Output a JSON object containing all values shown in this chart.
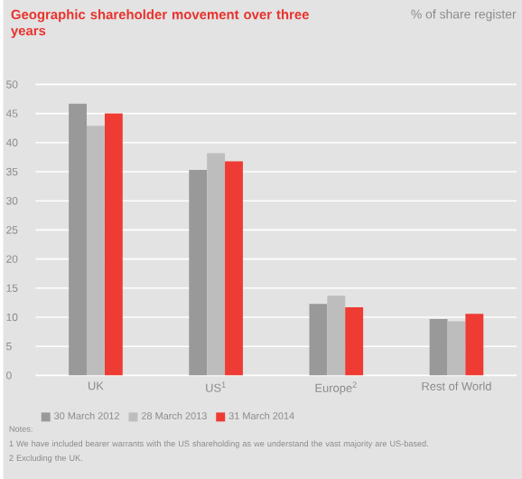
{
  "chart_data": {
    "type": "bar",
    "title": "Geographic shareholder movement over three years",
    "ylabel": "% of share register",
    "categories": [
      "UK",
      "US$^{1}$",
      "Europe$^{2}$",
      "Rest of World"
    ],
    "series": [
      {
        "name": "30 March 2012",
        "color": "#999999",
        "values": [
          46.7,
          35.3,
          12.3,
          9.7
        ]
      },
      {
        "name": "28 March 2013",
        "color": "#bdbdbd",
        "values": [
          42.9,
          38.2,
          13.7,
          9.3
        ]
      },
      {
        "name": "31 March 2014",
        "color": "#ee3b33",
        "values": [
          45.0,
          36.8,
          11.7,
          10.6
        ]
      }
    ],
    "ylim": [
      0,
      50
    ],
    "yticks": [
      0,
      5,
      10,
      15,
      20,
      25,
      30,
      35,
      40,
      45,
      50
    ],
    "grid": "y",
    "legend": "bottom left",
    "annotations": [
      "Notes:",
      "1  We have included bearer warrants with the US shareholding as we understand the vast majority are US-based.",
      "2  Excluding the UK."
    ]
  }
}
